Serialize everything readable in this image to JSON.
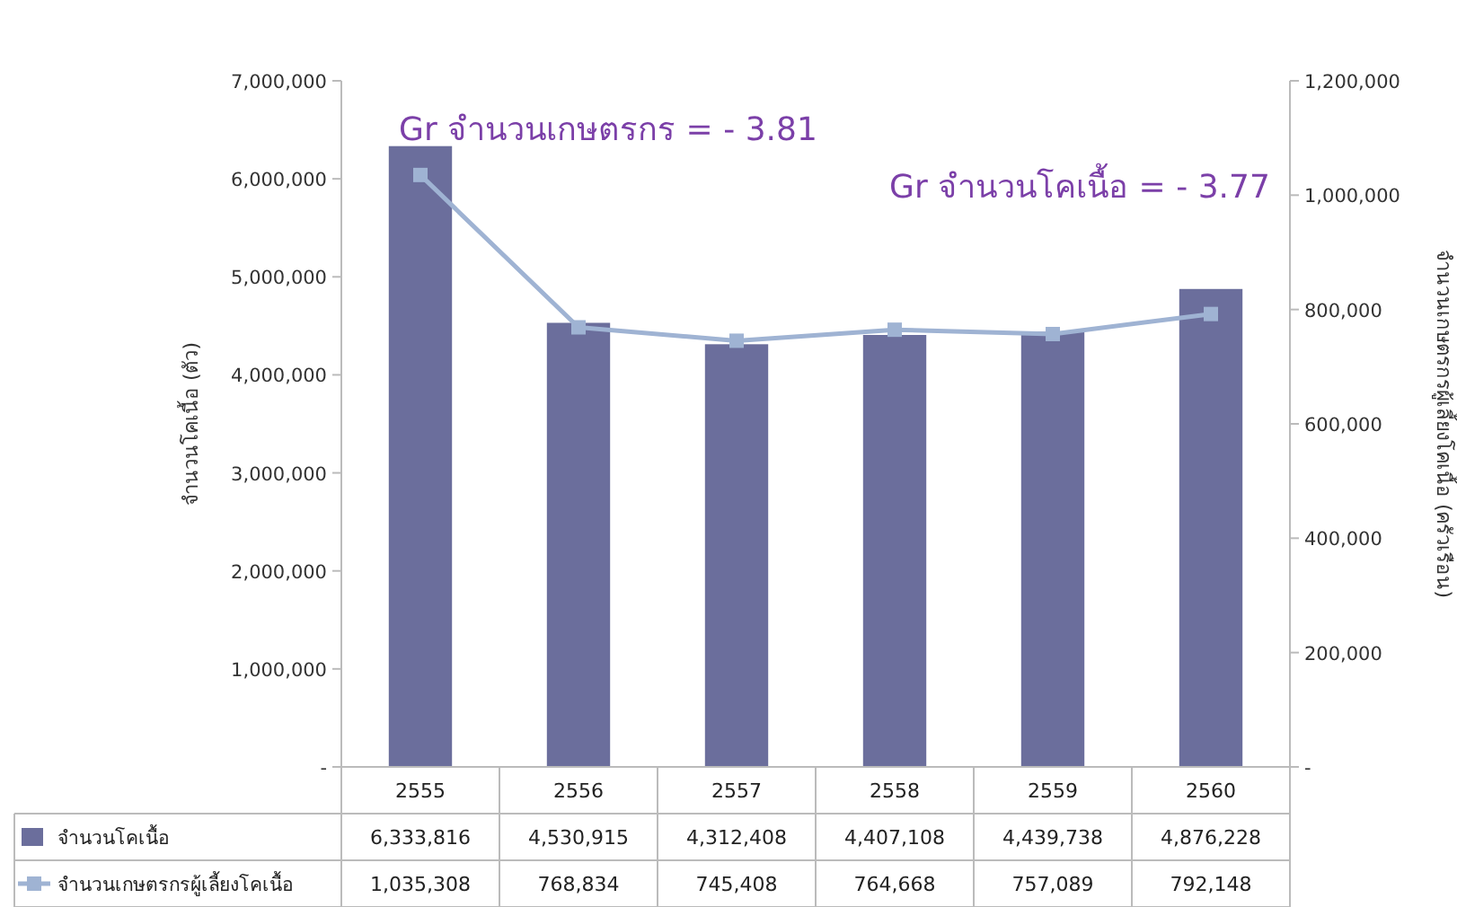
{
  "chart_data": {
    "type": "bar",
    "categories": [
      "2555",
      "2556",
      "2557",
      "2558",
      "2559",
      "2560"
    ],
    "series": [
      {
        "name": "จำนวนโคเนื้อ",
        "color": "#6b6e9c",
        "values": [
          6333816,
          4530915,
          4312408,
          4407108,
          4439738,
          4876228
        ],
        "value_labels": [
          "6,333,816",
          "4,530,915",
          "4,312,408",
          "4,407,108",
          "4,439,738",
          "4,876,228"
        ]
      },
      {
        "name": "จำนวนเกษตรกรผู้เลี้ยงโคเนื้อ",
        "type": "line",
        "axis": "y2",
        "color": "#9fb3d3",
        "marker": "square",
        "values": [
          1035308,
          768834,
          745408,
          764668,
          757089,
          792148
        ],
        "value_labels": [
          "1,035,308",
          "768,834",
          "745,408",
          "764,668",
          "757,089",
          "792,148"
        ]
      }
    ],
    "ylabel": "จำนวนโคเนื้อ (ตัว)",
    "y2label": "จำนวนเกษตรกรผู้เลี้ยงโคเนื้อ (ครัวเรือน)",
    "ylim": [
      0,
      7000000
    ],
    "yticks": [
      {
        "value": 0,
        "label": "-"
      },
      {
        "value": 1000000,
        "label": "1,000,000"
      },
      {
        "value": 2000000,
        "label": "2,000,000"
      },
      {
        "value": 3000000,
        "label": "3,000,000"
      },
      {
        "value": 4000000,
        "label": "4,000,000"
      },
      {
        "value": 5000000,
        "label": "5,000,000"
      },
      {
        "value": 6000000,
        "label": "6,000,000"
      },
      {
        "value": 7000000,
        "label": "7,000,000"
      }
    ],
    "y2lim": [
      0,
      1200000
    ],
    "y2ticks": [
      {
        "value": 0,
        "label": "-"
      },
      {
        "value": 200000,
        "label": "200,000"
      },
      {
        "value": 400000,
        "label": "400,000"
      },
      {
        "value": 600000,
        "label": "600,000"
      },
      {
        "value": 800000,
        "label": "800,000"
      },
      {
        "value": 1000000,
        "label": "1,000,000"
      },
      {
        "value": 1200000,
        "label": "1,200,000"
      }
    ],
    "annotations": [
      "Gr จำนวนเกษตรกร = - 3.81",
      "Gr จำนวนโคเนื้อ = - 3.77"
    ],
    "legend": "bottom"
  }
}
